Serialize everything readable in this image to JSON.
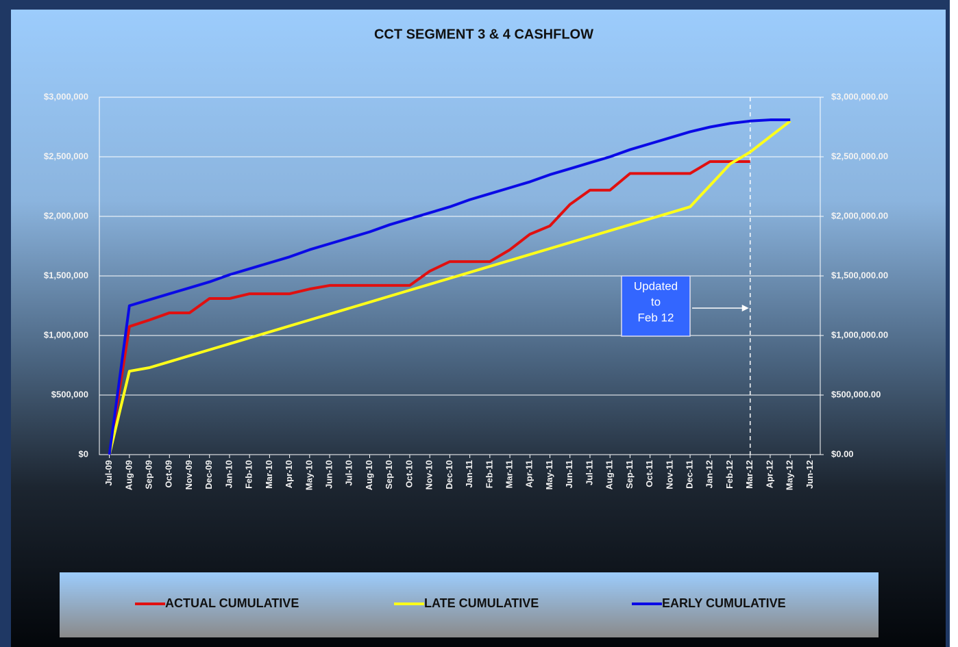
{
  "chart_data": {
    "type": "line",
    "title": "CCT SEGMENT 3 & 4 CASHFLOW",
    "categories": [
      "Jul-09",
      "Aug-09",
      "Sep-09",
      "Oct-09",
      "Nov-09",
      "Dec-09",
      "Jan-10",
      "Feb-10",
      "Mar-10",
      "Apr-10",
      "May-10",
      "Jun-10",
      "Jul-10",
      "Aug-10",
      "Sep-10",
      "Oct-10",
      "Nov-10",
      "Dec-10",
      "Jan-11",
      "Feb-11",
      "Mar-11",
      "Apr-11",
      "May-11",
      "Jun-11",
      "Jul-11",
      "Aug-11",
      "Sep-11",
      "Oct-11",
      "Nov-11",
      "Dec-11",
      "Jan-12",
      "Feb-12",
      "Mar-12",
      "Apr-12",
      "May-12",
      "Jun-12"
    ],
    "series": [
      {
        "name": "ACTUAL CUMULATIVE",
        "color": "#e01010",
        "values": [
          0,
          1075000,
          1130000,
          1190000,
          1190000,
          1310000,
          1310000,
          1350000,
          1350000,
          1350000,
          1390000,
          1420000,
          1420000,
          1420000,
          1420000,
          1420000,
          1540000,
          1620000,
          1620000,
          1620000,
          1720000,
          1850000,
          1920000,
          2100000,
          2220000,
          2220000,
          2360000,
          2360000,
          2360000,
          2360000,
          2460000,
          2460000,
          2460000,
          null,
          null,
          null
        ]
      },
      {
        "name": "LATE CUMULATIVE",
        "color": "#ffff1a",
        "values": [
          0,
          700000,
          730000,
          780000,
          830000,
          880000,
          930000,
          980000,
          1030000,
          1080000,
          1130000,
          1180000,
          1230000,
          1280000,
          1330000,
          1380000,
          1430000,
          1480000,
          1530000,
          1580000,
          1630000,
          1680000,
          1730000,
          1780000,
          1830000,
          1880000,
          1930000,
          1980000,
          2030000,
          2080000,
          2260000,
          2440000,
          2540000,
          2670000,
          2800000,
          null
        ]
      },
      {
        "name": "EARLY CUMULATIVE",
        "color": "#0a0ae6",
        "values": [
          0,
          1250000,
          1300000,
          1350000,
          1400000,
          1450000,
          1510000,
          1560000,
          1610000,
          1660000,
          1720000,
          1770000,
          1820000,
          1870000,
          1930000,
          1980000,
          2030000,
          2080000,
          2140000,
          2190000,
          2240000,
          2290000,
          2350000,
          2400000,
          2450000,
          2500000,
          2560000,
          2610000,
          2660000,
          2710000,
          2750000,
          2780000,
          2800000,
          2810000,
          2810000,
          null
        ]
      }
    ],
    "ylim": [
      0,
      3000000
    ],
    "yticks": [
      {
        "value": 0,
        "label": "$0"
      },
      {
        "value": 500000,
        "label": "$500,000"
      },
      {
        "value": 1000000,
        "label": "$1,000,000"
      },
      {
        "value": 1500000,
        "label": "$1,500,000"
      },
      {
        "value": 2000000,
        "label": "$2,000,000"
      },
      {
        "value": 2500000,
        "label": "$2,500,000"
      },
      {
        "value": 3000000,
        "label": "$3,000,000"
      }
    ],
    "y2lim": [
      0,
      3000000
    ],
    "y2ticks": [
      {
        "value": 0,
        "label": "$0.00"
      },
      {
        "value": 500000,
        "label": "$500,000.00"
      },
      {
        "value": 1000000,
        "label": "$1,000,000.00"
      },
      {
        "value": 1500000,
        "label": "$1,500,000.00"
      },
      {
        "value": 2000000,
        "label": "$2,000,000.00"
      },
      {
        "value": 2500000,
        "label": "$2,500,000.00"
      },
      {
        "value": 3000000,
        "label": "$3,000,000.00"
      }
    ],
    "grid": true,
    "legend": "bottom",
    "annotation": [
      "Updated",
      "to",
      "Feb 12"
    ]
  }
}
